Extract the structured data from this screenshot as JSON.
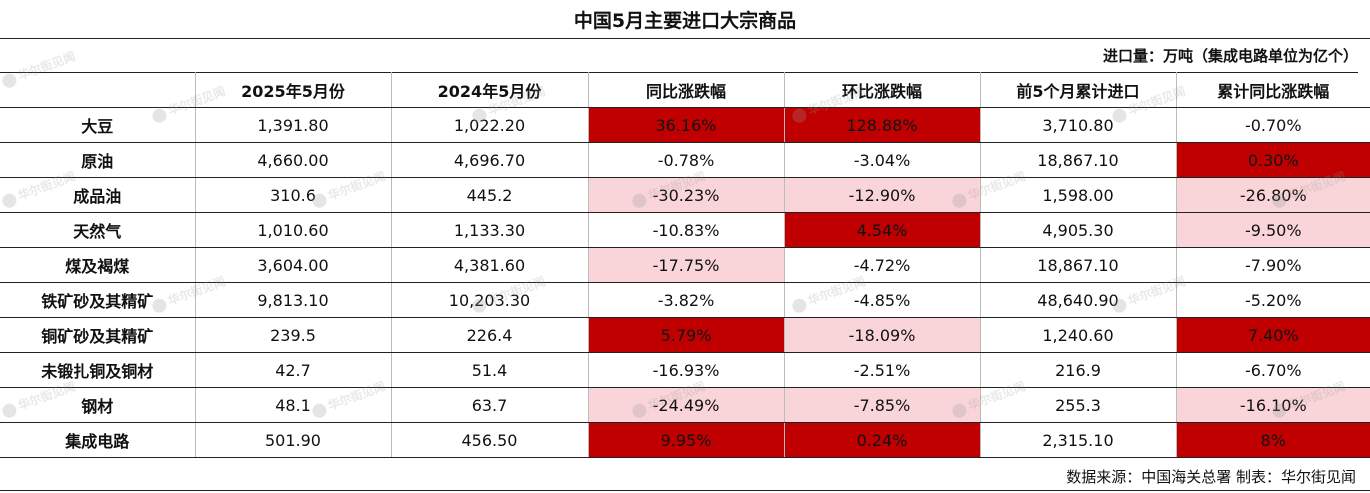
{
  "title": "中国5月主要进口大宗商品",
  "unit_note": "进口量：万吨（集成电路单位为亿个）",
  "headers": [
    "",
    "2025年5月份",
    "2024年5月份",
    "同比涨跌幅",
    "环比涨跌幅",
    "前5个月累计进口",
    "累计同比涨跌幅"
  ],
  "rows": [
    {
      "name": "大豆",
      "cells": [
        "1,391.80",
        "1,022.20",
        "36.16%",
        "128.88%",
        "3,710.80",
        "-0.70%"
      ]
    },
    {
      "name": "原油",
      "cells": [
        "4,660.00",
        "4,696.70",
        "-0.78%",
        "-3.04%",
        "18,867.10",
        "0.30%"
      ]
    },
    {
      "name": "成品油",
      "cells": [
        "310.6",
        "445.2",
        "-30.23%",
        "-12.90%",
        "1,598.00",
        "-26.80%"
      ]
    },
    {
      "name": "天然气",
      "cells": [
        "1,010.60",
        "1,133.30",
        "-10.83%",
        "4.54%",
        "4,905.30",
        "-9.50%"
      ]
    },
    {
      "name": "煤及褐煤",
      "cells": [
        "3,604.00",
        "4,381.60",
        "-17.75%",
        "-4.72%",
        "18,867.10",
        "-7.90%"
      ]
    },
    {
      "name": "铁矿砂及其精矿",
      "cells": [
        "9,813.10",
        "10,203.30",
        "-3.82%",
        "-4.85%",
        "48,640.90",
        "-5.20%"
      ]
    },
    {
      "name": "铜矿砂及其精矿",
      "cells": [
        "239.5",
        "226.4",
        "5.79%",
        "-18.09%",
        "1,240.60",
        "7.40%"
      ]
    },
    {
      "name": "未锻扎铜及铜材",
      "cells": [
        "42.7",
        "51.4",
        "-16.93%",
        "-2.51%",
        "216.9",
        "-6.70%"
      ]
    },
    {
      "name": "钢材",
      "cells": [
        "48.1",
        "63.7",
        "-24.49%",
        "-7.85%",
        "255.3",
        "-16.10%"
      ]
    },
    {
      "name": "集成电路",
      "cells": [
        "501.90",
        "456.50",
        "9.95%",
        "0.24%",
        "2,315.10",
        "8%"
      ]
    }
  ],
  "highlights": [
    [
      "",
      "",
      "dark",
      "dark",
      "",
      ""
    ],
    [
      "",
      "",
      "",
      "",
      "",
      "dark"
    ],
    [
      "",
      "",
      "light",
      "light",
      "",
      "light"
    ],
    [
      "",
      "",
      "",
      "dark",
      "",
      "light"
    ],
    [
      "",
      "",
      "light",
      "",
      "",
      ""
    ],
    [
      "",
      "",
      "",
      "",
      "",
      ""
    ],
    [
      "",
      "",
      "dark",
      "light",
      "",
      "dark"
    ],
    [
      "",
      "",
      "",
      "",
      "",
      ""
    ],
    [
      "",
      "",
      "light",
      "light",
      "",
      "light"
    ],
    [
      "",
      "",
      "dark",
      "dark",
      "",
      "dark"
    ]
  ],
  "colors": {
    "dark_highlight": "#c00000",
    "light_highlight": "#f9d5d9"
  },
  "watermark": "华尔街见闻",
  "source": "数据来源：中国海关总署 制表：华尔街见闻"
}
